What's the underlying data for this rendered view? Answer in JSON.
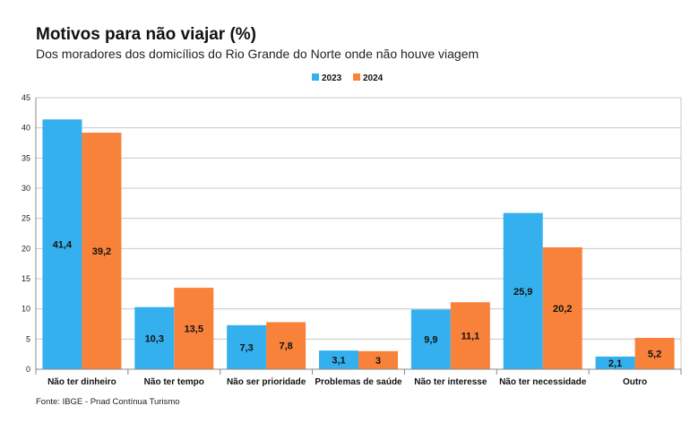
{
  "chart_data": {
    "type": "bar",
    "title": "Motivos para não viajar (%)",
    "subtitle": "Dos moradores dos domicílios do Rio Grande do Norte onde não houve viagem",
    "categories": [
      "Não ter dinheiro",
      "Não ter tempo",
      "Não ser prioridade",
      "Problemas de saúde",
      "Não ter interesse",
      "Não ter necessidade",
      "Outro"
    ],
    "series": [
      {
        "name": "2023",
        "values": [
          41.4,
          10.3,
          7.3,
          3.1,
          9.9,
          25.9,
          2.1
        ],
        "labels": [
          "41,4",
          "10,3",
          "7,3",
          "3,1",
          "9,9",
          "25,9",
          "2,1"
        ],
        "color": "#35b0ee"
      },
      {
        "name": "2024",
        "values": [
          39.2,
          13.5,
          7.8,
          3,
          11.1,
          20.2,
          5.2
        ],
        "labels": [
          "39,2",
          "13,5",
          "7,8",
          "3",
          "11,1",
          "20,2",
          "5,2"
        ],
        "color": "#f8823a"
      }
    ],
    "ylim": [
      0,
      45
    ],
    "yticks": [
      0,
      5,
      10,
      15,
      20,
      25,
      30,
      35,
      40,
      45
    ],
    "grid": true,
    "legend": "top-center"
  },
  "source": "Fonte: IBGE - Pnad Contínua Turismo"
}
